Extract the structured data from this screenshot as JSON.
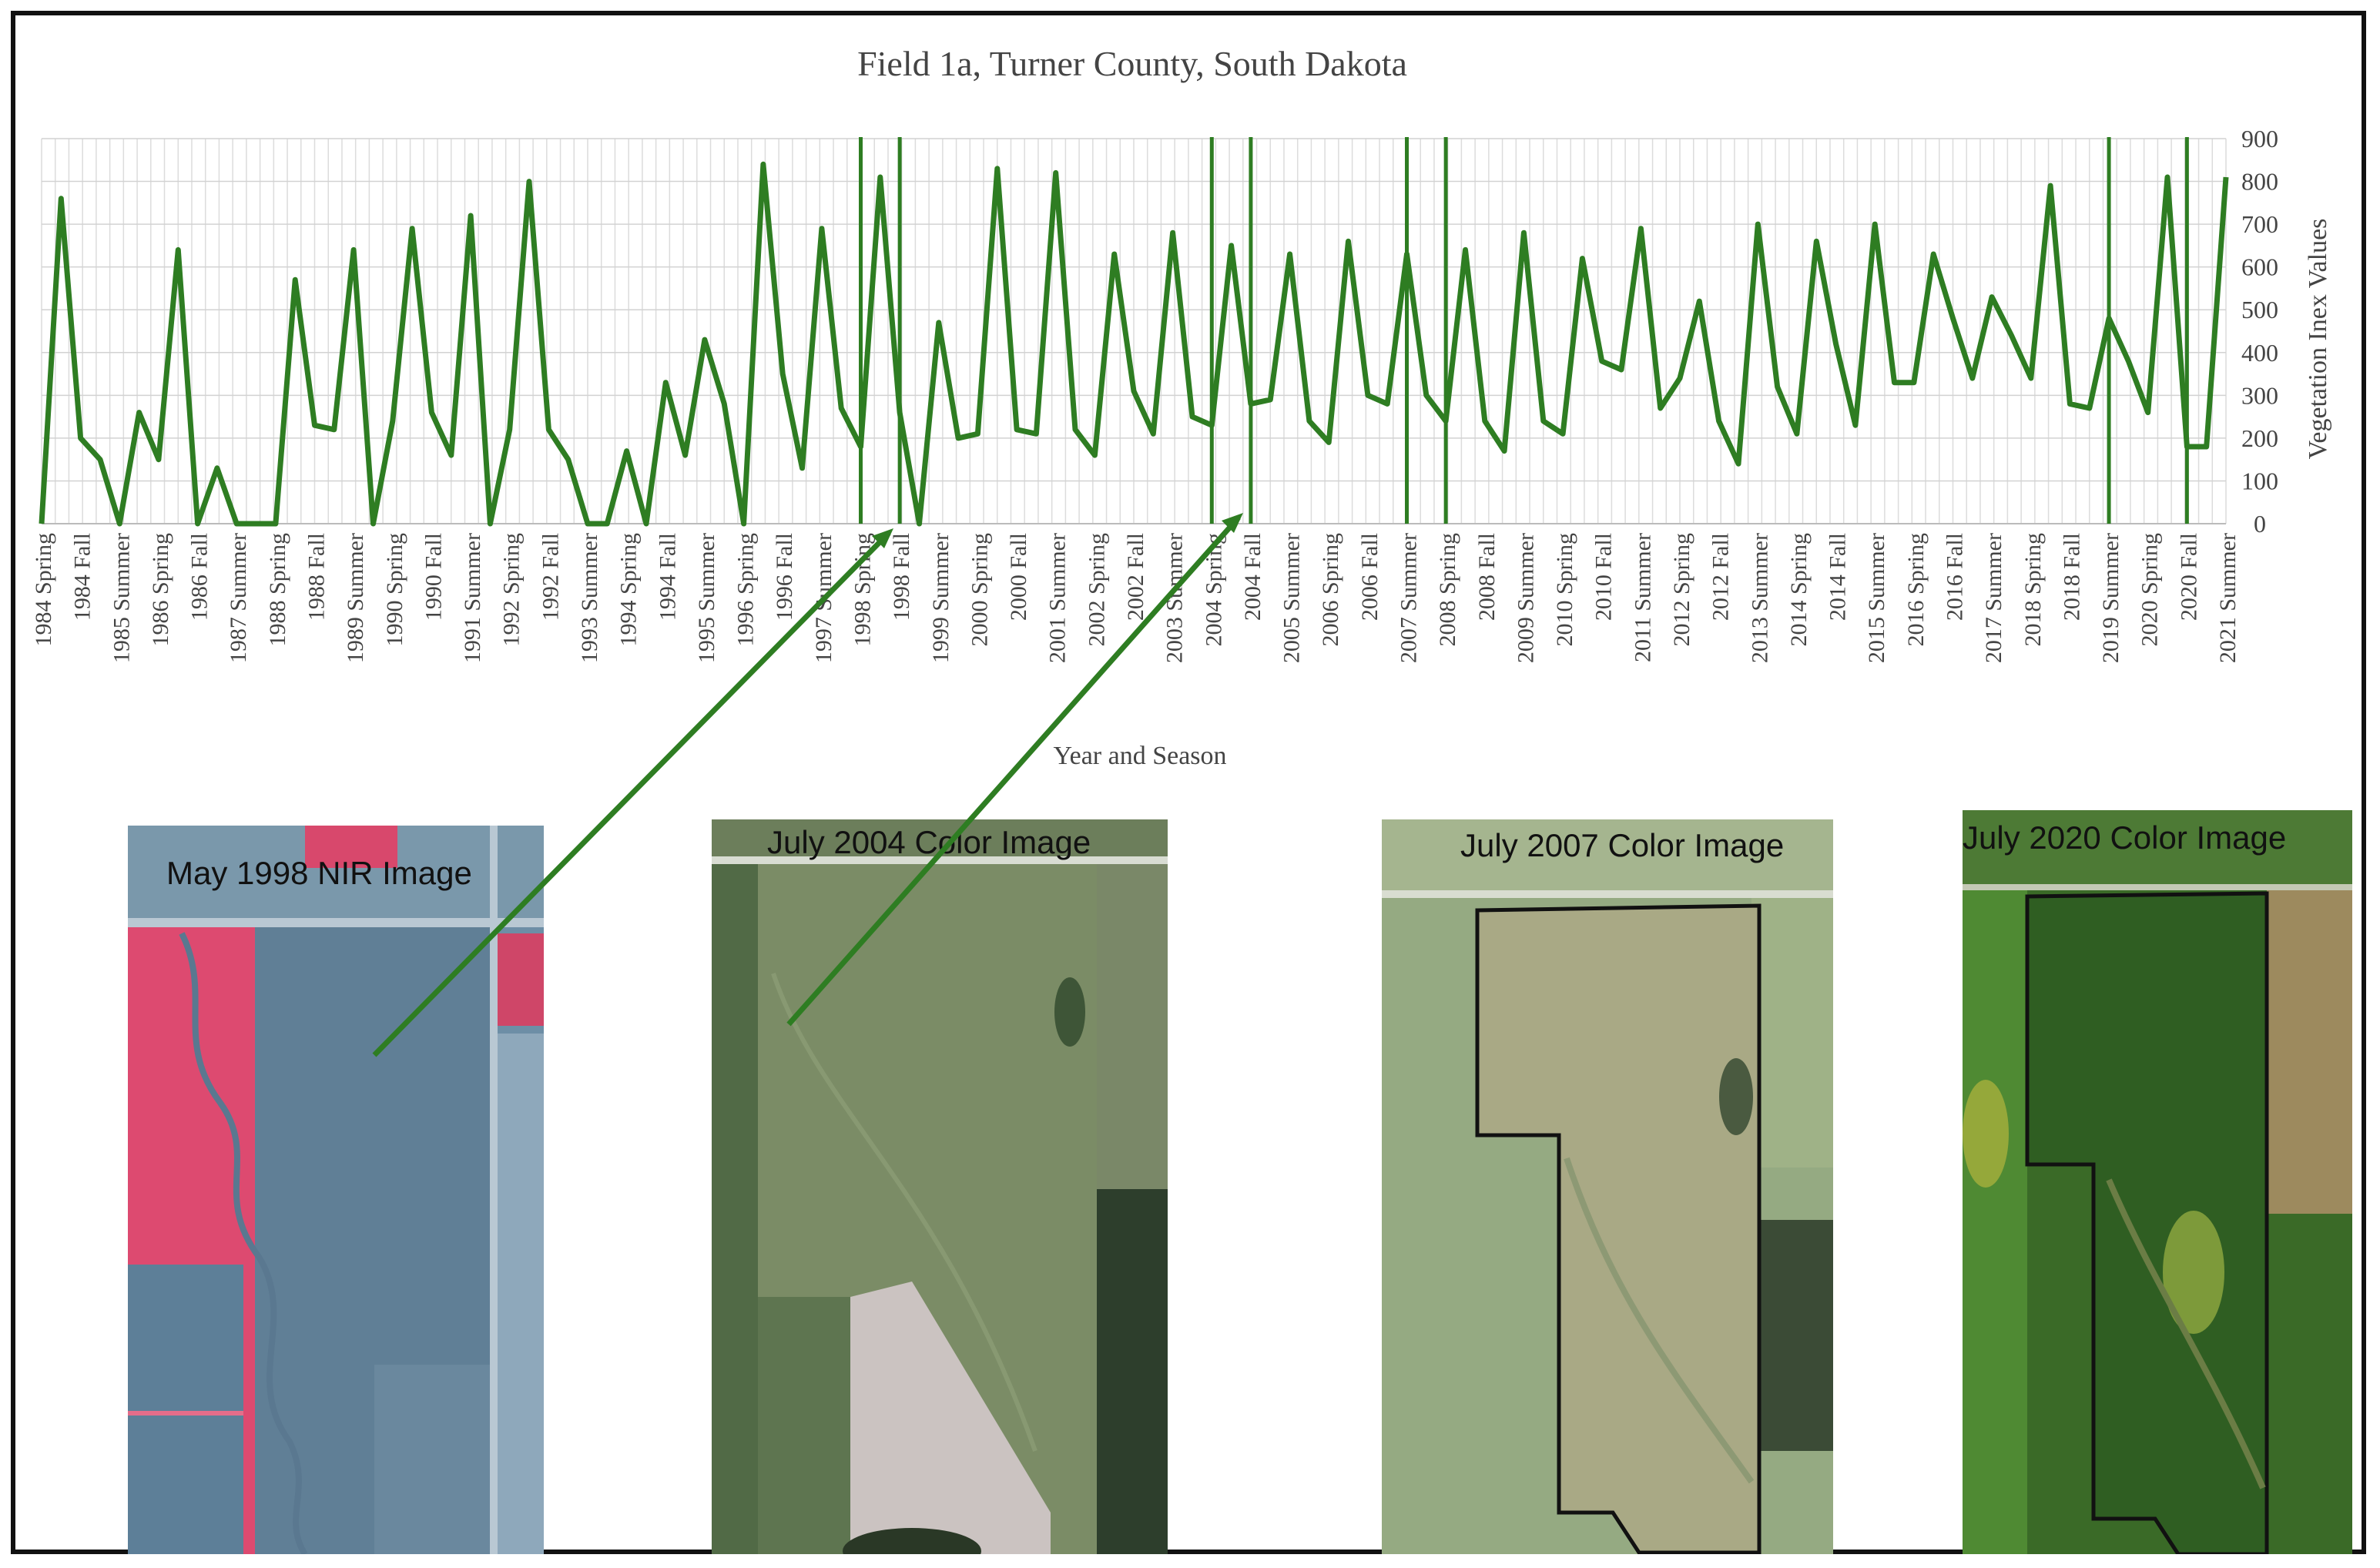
{
  "chart_data": {
    "type": "line",
    "title": "Field 1a, Turner County, South Dakota",
    "xlabel": "Year and Season",
    "ylabel": "Vegetation Inex Values",
    "ylim": [
      0,
      900
    ],
    "yticks": [
      0,
      100,
      200,
      300,
      400,
      500,
      600,
      700,
      800,
      900
    ],
    "y_axis_side": "right",
    "grid": true,
    "line_color": "#2e7d22",
    "x_labels": [
      "1984 Spring",
      "1984 Fall",
      "1985 Summer",
      "1986 Spring",
      "1986 Fall",
      "1987 Summer",
      "1988 Spring",
      "1988 Fall",
      "1989 Summer",
      "1990 Spring",
      "1990 Fall",
      "1991 Summer",
      "1992 Spring",
      "1992 Fall",
      "1993 Summer",
      "1994 Spring",
      "1994 Fall",
      "1995 Summer",
      "1996 Spring",
      "1996 Fall",
      "1997 Summer",
      "1998 Spring",
      "1998 Fall",
      "1999 Summer",
      "2000 Spring",
      "2000 Fall",
      "2001 Summer",
      "2002 Spring",
      "2002 Fall",
      "2003 Summer",
      "2004 Spring",
      "2004 Fall",
      "2005 Summer",
      "2006 Spring",
      "2006 Fall",
      "2007 Summer",
      "2008 Spring",
      "2008 Fall",
      "2009 Summer",
      "2010 Spring",
      "2010 Fall",
      "2011 Summer",
      "2012 Spring",
      "2012 Fall",
      "2013 Summer",
      "2014 Spring",
      "2014 Fall",
      "2015 Summer",
      "2016 Spring",
      "2016 Fall",
      "2017 Summer",
      "2018 Spring",
      "2018 Fall",
      "2019 Summer",
      "2020 Spring",
      "2020 Fall",
      "2021 Summer"
    ],
    "series": [
      {
        "values": [
          0,
          760,
          200,
          150,
          0,
          260,
          150,
          640,
          0,
          130,
          0,
          0,
          0,
          570,
          230,
          220,
          640,
          0,
          240,
          690,
          260,
          160,
          720,
          0,
          220,
          800,
          220,
          150,
          0,
          0,
          170,
          0,
          330,
          160,
          430,
          280,
          0,
          840,
          350,
          130,
          690,
          270,
          180,
          810,
          260,
          0,
          470,
          200,
          210,
          830,
          220,
          210,
          820,
          220,
          160,
          630,
          310,
          210,
          680,
          250,
          230,
          650,
          280,
          290,
          630,
          240,
          190,
          660,
          300,
          280,
          630,
          300,
          240,
          640,
          240,
          170,
          680,
          240,
          210,
          620,
          380,
          360,
          690,
          270,
          340,
          520,
          240,
          140,
          700,
          320,
          210,
          660,
          420,
          230,
          700,
          330,
          330,
          630,
          480,
          340,
          530,
          440,
          340,
          790,
          280,
          270,
          480,
          380,
          260,
          810,
          180,
          180,
          810
        ]
      }
    ],
    "vertical_markers": [
      "1998 Spring",
      "1998 Fall",
      "2004 Spring",
      "2004 Fall",
      "2007 Summer",
      "2008 Spring",
      "2019 Summer",
      "2020 Fall"
    ]
  },
  "images": [
    {
      "label": "May 1998 NIR Image",
      "points_to": "1998 Spring"
    },
    {
      "label": "July 2004 Color Image",
      "points_to": "2004 Spring"
    },
    {
      "label": "July 2007 Color Image"
    },
    {
      "label": "July 2020 Color Image"
    }
  ],
  "colors": {
    "line": "#2e7d22",
    "grid": "#d8d8d8",
    "text": "#444444",
    "nir_red": "#e0466a",
    "nir_blue": "#5f7f97"
  }
}
